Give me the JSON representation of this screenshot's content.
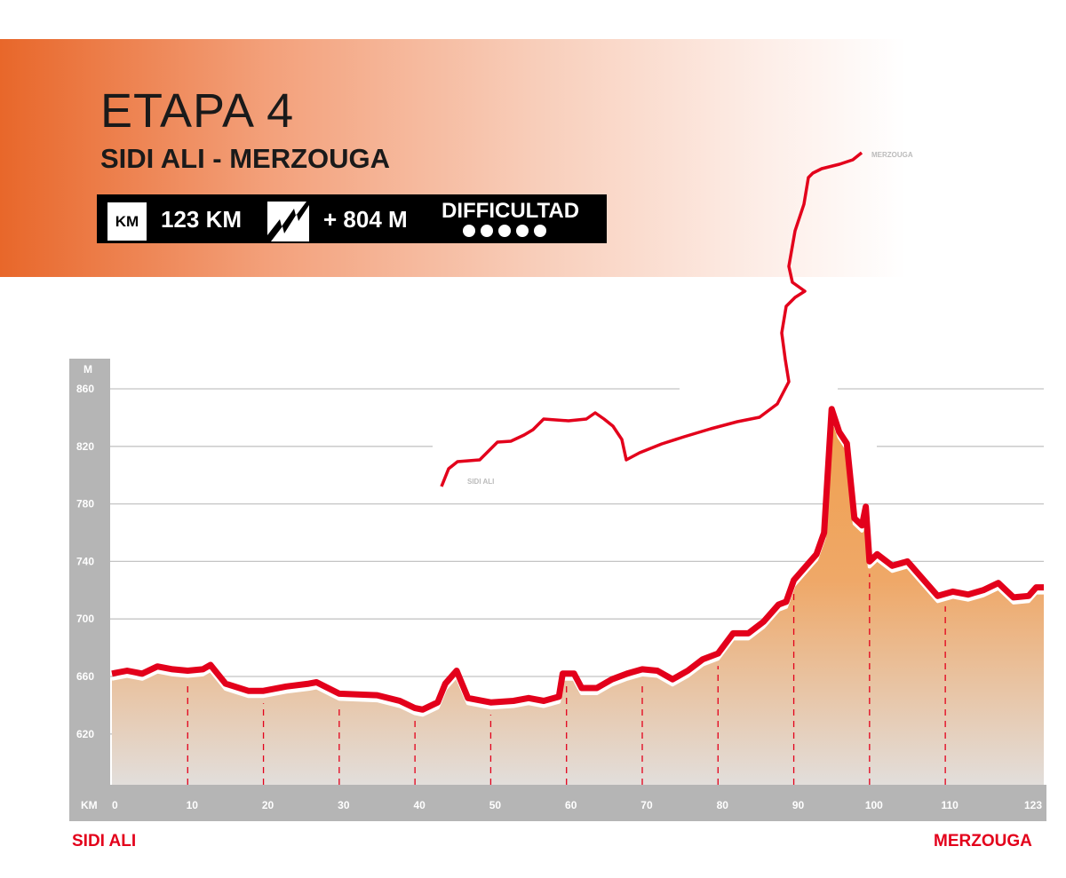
{
  "header": {
    "title": "ETAPA 4",
    "subtitle": "SIDI ALI - MERZOUGA",
    "km_icon_label": "KM",
    "distance": "123 KM",
    "climb_icon": "elevation-gain-icon",
    "climb": "+ 804  M",
    "difficulty_label": "DIFFICULTAD",
    "difficulty_level": 5
  },
  "map": {
    "start_label": "SIDI ALI",
    "end_label": "MERZOUGA"
  },
  "footer": {
    "start": "SIDI ALI",
    "end": "MERZOUGA"
  },
  "colors": {
    "line": "#e3001b",
    "fill_top": "#f0a04e",
    "fill_bottom": "#e2dedb",
    "axis_band": "#b5b5b5",
    "header_accent": "#e8672a"
  },
  "chart_data": {
    "type": "area",
    "ylabel": "M",
    "xlabel": "KM",
    "ylim": [
      587,
      880
    ],
    "xlim": [
      0,
      123
    ],
    "yticks": [
      620,
      660,
      700,
      740,
      780,
      820,
      860
    ],
    "xticks": [
      0,
      10,
      20,
      30,
      40,
      50,
      60,
      70,
      80,
      90,
      100,
      110,
      123
    ],
    "grid": true,
    "x": [
      0,
      2,
      4,
      6,
      8,
      10,
      12,
      13,
      15,
      18,
      20,
      23,
      26,
      27,
      30,
      35,
      38,
      40,
      41,
      43,
      44,
      45.5,
      47,
      50,
      53,
      55,
      57,
      59,
      59.5,
      61,
      62,
      64,
      66,
      68,
      70,
      72,
      74,
      76,
      78,
      80,
      82,
      84,
      86,
      88,
      89,
      90,
      93,
      94,
      95,
      96,
      97,
      98,
      99,
      99.5,
      100,
      101,
      103,
      105,
      107,
      109,
      111,
      113,
      115,
      117,
      119,
      121,
      122,
      123
    ],
    "elevation": [
      662,
      664,
      662,
      667,
      665,
      664,
      665,
      668,
      655,
      650,
      650,
      653,
      655,
      656,
      648,
      647,
      643,
      638,
      637,
      642,
      655,
      664,
      645,
      642,
      643,
      645,
      643,
      646,
      662,
      662,
      652,
      652,
      658,
      662,
      665,
      664,
      658,
      664,
      672,
      676,
      690,
      690,
      698,
      710,
      712,
      727,
      745,
      760,
      846,
      830,
      822,
      770,
      765,
      778,
      740,
      745,
      737,
      740,
      728,
      716,
      719,
      717,
      720,
      725,
      715,
      716,
      722,
      722
    ]
  }
}
